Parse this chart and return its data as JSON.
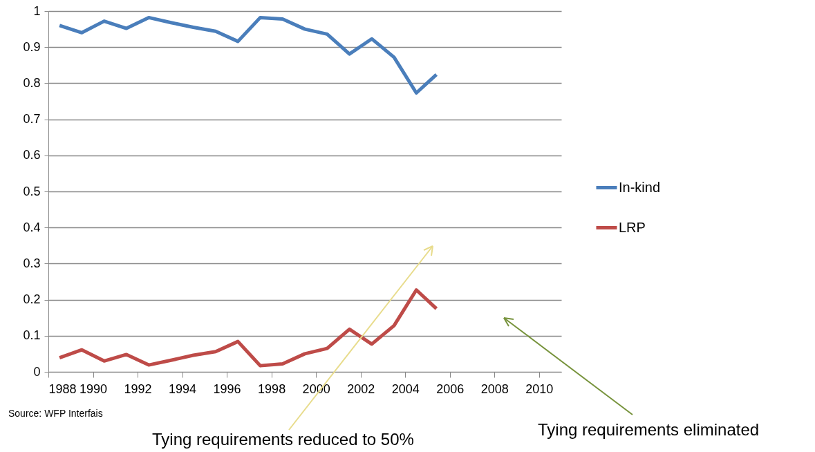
{
  "chart_data": {
    "type": "line",
    "x": [
      1988.5,
      1989.5,
      1990.5,
      1991.5,
      1992.5,
      1993.5,
      1994.5,
      1995.5,
      1996.5,
      1997.5,
      1998.5,
      1999.5,
      2000.5,
      2001.5,
      2002.5,
      2003.5,
      2004.5,
      2005.4
    ],
    "series": [
      {
        "name": "In-kind",
        "color": "#4a7ebb",
        "values": [
          0.96,
          0.94,
          0.972,
          0.952,
          0.982,
          0.968,
          0.955,
          0.944,
          0.916,
          0.982,
          0.978,
          0.95,
          0.936,
          0.881,
          0.923,
          0.872,
          0.773,
          0.824
        ]
      },
      {
        "name": "LRP",
        "color": "#be4b48",
        "values": [
          0.039,
          0.061,
          0.03,
          0.048,
          0.019,
          0.032,
          0.046,
          0.056,
          0.084,
          0.017,
          0.022,
          0.05,
          0.065,
          0.118,
          0.077,
          0.128,
          0.227,
          0.175
        ]
      }
    ],
    "xlim": [
      1988,
      2011
    ],
    "xticks": [
      1988,
      1990,
      1992,
      1994,
      1996,
      1998,
      2000,
      2002,
      2004,
      2006,
      2008,
      2010
    ],
    "ylim": [
      0,
      1
    ],
    "yticks": [
      0,
      0.1,
      0.2,
      0.3,
      0.4,
      0.5,
      0.6,
      0.7,
      0.8,
      0.9,
      1
    ],
    "grid": "y",
    "legend": "right",
    "marker": "none",
    "line_style": "solid",
    "annotations": [
      "Source: WFP Interfais",
      "Tying requirements reduced to 50%",
      "Tying requirements eliminated"
    ]
  }
}
